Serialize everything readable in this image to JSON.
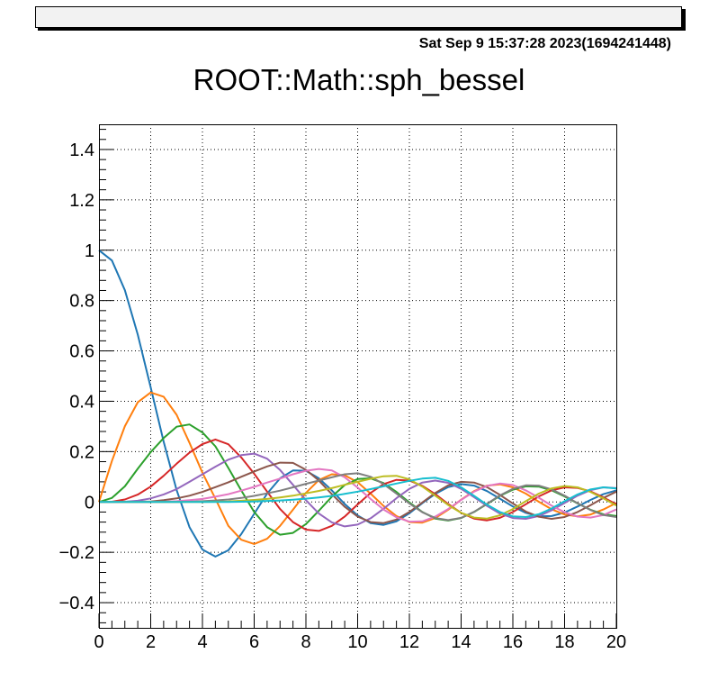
{
  "timestamp": "Sat Sep  9 15:37:28 2023(1694241448)",
  "chart_data": {
    "type": "line",
    "title": "ROOT::Math::sph_bessel",
    "xlabel": "",
    "ylabel": "",
    "xlim": [
      0,
      20
    ],
    "ylim": [
      -0.5,
      1.5
    ],
    "grid": true,
    "xticks": [
      "0",
      "2",
      "4",
      "6",
      "8",
      "10",
      "12",
      "14",
      "16",
      "18",
      "20"
    ],
    "yticks": [
      "−0.4",
      "−0.2",
      "0",
      "0.2",
      "0.4",
      "0.6",
      "0.8",
      "1",
      "1.2",
      "1.4"
    ],
    "series_colors": [
      "#1f77b4",
      "#ff7f0e",
      "#2ca02c",
      "#d62728",
      "#9467bd",
      "#8c564b",
      "#e377c2",
      "#7f7f7f",
      "#bcbd22",
      "#17becf"
    ],
    "series": [
      {
        "n": 0,
        "x": [
          0,
          0.5,
          1,
          1.5,
          2,
          2.5,
          3,
          3.5,
          4,
          4.5,
          5,
          5.5,
          6,
          6.5,
          7,
          7.5,
          8,
          8.5,
          9,
          9.5,
          10,
          10.5,
          11,
          11.5,
          12,
          12.5,
          13,
          13.5,
          14,
          14.5,
          15,
          15.5,
          16,
          16.5,
          17,
          17.5,
          18,
          18.5,
          19,
          19.5,
          20
        ],
        "y": [
          1,
          0.959,
          0.841,
          0.665,
          0.455,
          0.239,
          0.047,
          -0.1,
          -0.189,
          -0.217,
          -0.192,
          -0.128,
          -0.047,
          0.033,
          0.094,
          0.125,
          0.124,
          0.094,
          0.046,
          -0.008,
          -0.054,
          -0.084,
          -0.091,
          -0.077,
          -0.045,
          -0.005,
          0.032,
          0.059,
          0.071,
          0.065,
          0.043,
          0.013,
          -0.018,
          -0.043,
          -0.057,
          -0.056,
          -0.042,
          -0.018,
          0.008,
          0.031,
          0.046
        ]
      },
      {
        "n": 1,
        "x": [
          0,
          0.5,
          1,
          1.5,
          2,
          2.5,
          3,
          3.5,
          4,
          4.5,
          5,
          5.5,
          6,
          6.5,
          7,
          7.5,
          8,
          8.5,
          9,
          9.5,
          10,
          10.5,
          11,
          11.5,
          12,
          12.5,
          13,
          13.5,
          14,
          14.5,
          15,
          15.5,
          16,
          16.5,
          17,
          17.5,
          18,
          18.5,
          19,
          19.5,
          20
        ],
        "y": [
          0,
          0.163,
          0.301,
          0.396,
          0.435,
          0.418,
          0.346,
          0.235,
          0.116,
          0.013,
          -0.095,
          -0.15,
          -0.167,
          -0.146,
          -0.095,
          -0.031,
          0.036,
          0.087,
          0.11,
          0.106,
          0.078,
          0.033,
          -0.016,
          -0.056,
          -0.08,
          -0.082,
          -0.064,
          -0.031,
          0.009,
          0.043,
          0.065,
          0.07,
          0.058,
          0.033,
          0.001,
          -0.029,
          -0.05,
          -0.057,
          -0.05,
          -0.03,
          -0.004
        ]
      },
      {
        "n": 2,
        "x": [
          0,
          0.5,
          1,
          1.5,
          2,
          2.5,
          3,
          3.5,
          4,
          4.5,
          5,
          5.5,
          6,
          6.5,
          7,
          7.5,
          8,
          8.5,
          9,
          9.5,
          10,
          10.5,
          11,
          11.5,
          12,
          12.5,
          13,
          13.5,
          14,
          14.5,
          15,
          15.5,
          16,
          16.5,
          17,
          17.5,
          18,
          18.5,
          19,
          19.5,
          20
        ],
        "y": [
          0,
          0.016,
          0.062,
          0.132,
          0.198,
          0.254,
          0.299,
          0.308,
          0.276,
          0.221,
          0.135,
          0.046,
          -0.04,
          -0.1,
          -0.13,
          -0.123,
          -0.088,
          -0.035,
          0.021,
          0.067,
          0.091,
          0.094,
          0.075,
          0.04,
          -0.002,
          -0.04,
          -0.066,
          -0.074,
          -0.064,
          -0.04,
          -0.008,
          0.024,
          0.049,
          0.062,
          0.061,
          0.046,
          0.022,
          -0.006,
          -0.031,
          -0.049,
          -0.056
        ]
      },
      {
        "n": 3,
        "x": [
          0,
          0.5,
          1,
          1.5,
          2,
          2.5,
          3,
          3.5,
          4,
          4.5,
          5,
          5.5,
          6,
          6.5,
          7,
          7.5,
          8,
          8.5,
          9,
          9.5,
          10,
          10.5,
          11,
          11.5,
          12,
          12.5,
          13,
          13.5,
          14,
          14.5,
          15,
          15.5,
          16,
          16.5,
          17,
          17.5,
          18,
          18.5,
          19,
          19.5,
          20
        ],
        "y": [
          0,
          0.001,
          0.01,
          0.029,
          0.061,
          0.104,
          0.152,
          0.196,
          0.23,
          0.248,
          0.229,
          0.177,
          0.112,
          0.041,
          -0.028,
          -0.08,
          -0.11,
          -0.115,
          -0.095,
          -0.058,
          -0.01,
          0.036,
          0.071,
          0.088,
          0.085,
          0.064,
          0.031,
          -0.008,
          -0.043,
          -0.066,
          -0.073,
          -0.063,
          -0.04,
          -0.009,
          0.022,
          0.046,
          0.058,
          0.056,
          0.042,
          0.018,
          -0.009
        ]
      },
      {
        "n": 4,
        "x": [
          0,
          0.5,
          1,
          1.5,
          2,
          2.5,
          3,
          3.5,
          4,
          4.5,
          5,
          5.5,
          6,
          6.5,
          7,
          7.5,
          8,
          8.5,
          9,
          9.5,
          10,
          10.5,
          11,
          11.5,
          12,
          12.5,
          13,
          13.5,
          14,
          14.5,
          15,
          15.5,
          16,
          16.5,
          17,
          17.5,
          18,
          18.5,
          19,
          19.5,
          20
        ],
        "y": [
          0,
          0,
          0.001,
          0.005,
          0.014,
          0.03,
          0.051,
          0.08,
          0.11,
          0.14,
          0.168,
          0.186,
          0.192,
          0.172,
          0.127,
          0.068,
          0.007,
          -0.046,
          -0.081,
          -0.097,
          -0.09,
          -0.065,
          -0.027,
          0.015,
          0.052,
          0.077,
          0.085,
          0.076,
          0.052,
          0.019,
          -0.016,
          -0.046,
          -0.064,
          -0.067,
          -0.056,
          -0.033,
          -0.004,
          0.025,
          0.047,
          0.058,
          0.055
        ]
      },
      {
        "n": 5,
        "x": [
          0,
          0.5,
          1,
          1.5,
          2,
          2.5,
          3,
          3.5,
          4,
          4.5,
          5,
          5.5,
          6,
          6.5,
          7,
          7.5,
          8,
          8.5,
          9,
          9.5,
          10,
          10.5,
          11,
          11.5,
          12,
          12.5,
          13,
          13.5,
          14,
          14.5,
          15,
          15.5,
          16,
          16.5,
          17,
          17.5,
          18,
          18.5,
          19,
          19.5,
          20
        ],
        "y": [
          0,
          0,
          0,
          0.001,
          0.002,
          0.007,
          0.014,
          0.025,
          0.04,
          0.059,
          0.078,
          0.1,
          0.121,
          0.141,
          0.156,
          0.155,
          0.128,
          0.085,
          0.031,
          -0.019,
          -0.058,
          -0.08,
          -0.084,
          -0.07,
          -0.04,
          -0.002,
          0.036,
          0.066,
          0.08,
          0.077,
          0.059,
          0.028,
          -0.006,
          -0.038,
          -0.059,
          -0.067,
          -0.06,
          -0.04,
          -0.013,
          0.016,
          0.041
        ]
      },
      {
        "n": 6,
        "x": [
          0,
          0.5,
          1,
          1.5,
          2,
          2.5,
          3,
          3.5,
          4,
          4.5,
          5,
          5.5,
          6,
          6.5,
          7,
          7.5,
          8,
          8.5,
          9,
          9.5,
          10,
          10.5,
          11,
          11.5,
          12,
          12.5,
          13,
          13.5,
          14,
          14.5,
          15,
          15.5,
          16,
          16.5,
          17,
          17.5,
          18,
          18.5,
          19,
          19.5,
          20
        ],
        "y": [
          0,
          0,
          0,
          0,
          0,
          0.001,
          0.003,
          0.007,
          0.012,
          0.021,
          0.031,
          0.045,
          0.06,
          0.077,
          0.093,
          0.11,
          0.124,
          0.131,
          0.125,
          0.098,
          0.057,
          0.012,
          -0.03,
          -0.061,
          -0.078,
          -0.077,
          -0.058,
          -0.028,
          0.008,
          0.041,
          0.064,
          0.073,
          0.067,
          0.046,
          0.017,
          -0.015,
          -0.041,
          -0.058,
          -0.062,
          -0.052,
          -0.03
        ]
      },
      {
        "n": 7,
        "x": [
          0,
          0.5,
          1,
          1.5,
          2,
          2.5,
          3,
          3.5,
          4,
          4.5,
          5,
          5.5,
          6,
          6.5,
          7,
          7.5,
          8,
          8.5,
          9,
          9.5,
          10,
          10.5,
          11,
          11.5,
          12,
          12.5,
          13,
          13.5,
          14,
          14.5,
          15,
          15.5,
          16,
          16.5,
          17,
          17.5,
          18,
          18.5,
          19,
          19.5,
          20
        ],
        "y": [
          0,
          0,
          0,
          0,
          0,
          0,
          0,
          0.001,
          0.003,
          0.006,
          0.01,
          0.016,
          0.024,
          0.034,
          0.045,
          0.058,
          0.072,
          0.085,
          0.098,
          0.11,
          0.114,
          0.1,
          0.071,
          0.033,
          -0.006,
          -0.041,
          -0.064,
          -0.072,
          -0.063,
          -0.039,
          -0.007,
          0.026,
          0.052,
          0.066,
          0.065,
          0.05,
          0.025,
          -0.005,
          -0.032,
          -0.052,
          -0.06
        ]
      },
      {
        "n": 8,
        "x": [
          0,
          0.5,
          1,
          1.5,
          2,
          2.5,
          3,
          3.5,
          4,
          4.5,
          5,
          5.5,
          6,
          6.5,
          7,
          7.5,
          8,
          8.5,
          9,
          9.5,
          10,
          10.5,
          11,
          11.5,
          12,
          12.5,
          13,
          13.5,
          14,
          14.5,
          15,
          15.5,
          16,
          16.5,
          17,
          17.5,
          18,
          18.5,
          19,
          19.5,
          20
        ],
        "y": [
          0,
          0,
          0,
          0,
          0,
          0,
          0,
          0,
          0,
          0.001,
          0.002,
          0.005,
          0.008,
          0.012,
          0.018,
          0.025,
          0.034,
          0.044,
          0.055,
          0.068,
          0.08,
          0.092,
          0.102,
          0.104,
          0.09,
          0.061,
          0.025,
          -0.012,
          -0.043,
          -0.062,
          -0.066,
          -0.053,
          -0.028,
          0.003,
          0.033,
          0.054,
          0.063,
          0.058,
          0.04,
          0.014,
          -0.014
        ]
      },
      {
        "n": 9,
        "x": [
          0,
          0.5,
          1,
          1.5,
          2,
          2.5,
          3,
          3.5,
          4,
          4.5,
          5,
          5.5,
          6,
          6.5,
          7,
          7.5,
          8,
          8.5,
          9,
          9.5,
          10,
          10.5,
          11,
          11.5,
          12,
          12.5,
          13,
          13.5,
          14,
          14.5,
          15,
          15.5,
          16,
          16.5,
          17,
          17.5,
          18,
          18.5,
          19,
          19.5,
          20
        ],
        "y": [
          0,
          0,
          0,
          0,
          0,
          0,
          0,
          0,
          0,
          0,
          0,
          0.001,
          0.002,
          0.004,
          0.006,
          0.009,
          0.013,
          0.018,
          0.024,
          0.032,
          0.041,
          0.051,
          0.062,
          0.073,
          0.084,
          0.093,
          0.096,
          0.084,
          0.058,
          0.024,
          -0.011,
          -0.04,
          -0.057,
          -0.06,
          -0.049,
          -0.026,
          0.003,
          0.03,
          0.05,
          0.058,
          0.054
        ]
      }
    ]
  }
}
